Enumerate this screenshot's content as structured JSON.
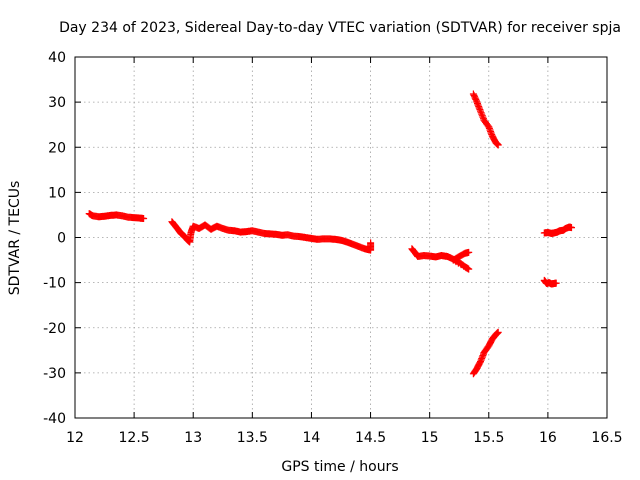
{
  "chart_data": {
    "type": "scatter",
    "title": "Day 234 of 2023, Sidereal Day-to-day VTEC variation (SDTVAR) for receiver spja",
    "xlabel": "GPS time / hours",
    "ylabel": "SDTVAR / TECUs",
    "xlim": [
      12,
      16.5
    ],
    "ylim": [
      -40,
      40
    ],
    "xticks": [
      12,
      12.5,
      13,
      13.5,
      14,
      14.5,
      15,
      15.5,
      16,
      16.5
    ],
    "yticks": [
      -40,
      -30,
      -20,
      -10,
      0,
      10,
      20,
      30,
      40
    ],
    "xtick_labels": [
      "12",
      "12.5",
      "13",
      "13.5",
      "14",
      "14.5",
      "15",
      "15.5",
      "16",
      "16.5"
    ],
    "ytick_labels": [
      "-40",
      "-30",
      "-20",
      "-10",
      "0",
      "10",
      "20",
      "30",
      "40"
    ],
    "grid": true,
    "marker": "+",
    "color": "#ff0000",
    "series": [
      {
        "name": "segment-1",
        "points": [
          [
            12.12,
            5.3
          ],
          [
            12.15,
            4.8
          ],
          [
            12.2,
            4.6
          ],
          [
            12.25,
            4.7
          ],
          [
            12.3,
            4.9
          ],
          [
            12.35,
            5.0
          ],
          [
            12.4,
            4.8
          ],
          [
            12.45,
            4.5
          ],
          [
            12.5,
            4.4
          ],
          [
            12.55,
            4.3
          ],
          [
            12.58,
            4.2
          ]
        ]
      },
      {
        "name": "segment-2",
        "points": [
          [
            12.82,
            3.5
          ],
          [
            12.85,
            2.5
          ],
          [
            12.88,
            1.5
          ],
          [
            12.9,
            0.8
          ],
          [
            12.93,
            0.2
          ],
          [
            12.95,
            -0.5
          ],
          [
            12.97,
            -1.0
          ],
          [
            12.98,
            1.0
          ],
          [
            13.0,
            2.5
          ],
          [
            13.05,
            2.0
          ],
          [
            13.1,
            2.8
          ],
          [
            13.15,
            1.8
          ],
          [
            13.2,
            2.5
          ],
          [
            13.25,
            2.0
          ],
          [
            13.3,
            1.6
          ],
          [
            13.35,
            1.5
          ],
          [
            13.4,
            1.2
          ],
          [
            13.45,
            1.3
          ],
          [
            13.5,
            1.5
          ],
          [
            13.55,
            1.2
          ],
          [
            13.6,
            0.9
          ],
          [
            13.65,
            0.8
          ],
          [
            13.7,
            0.7
          ],
          [
            13.75,
            0.5
          ],
          [
            13.8,
            0.6
          ],
          [
            13.85,
            0.3
          ],
          [
            13.9,
            0.2
          ],
          [
            13.95,
            0.0
          ],
          [
            14.0,
            -0.2
          ],
          [
            14.05,
            -0.4
          ],
          [
            14.1,
            -0.3
          ],
          [
            14.15,
            -0.3
          ],
          [
            14.2,
            -0.4
          ],
          [
            14.25,
            -0.6
          ],
          [
            14.3,
            -1.0
          ],
          [
            14.35,
            -1.5
          ],
          [
            14.4,
            -2.0
          ],
          [
            14.45,
            -2.5
          ],
          [
            14.5,
            -2.8
          ],
          [
            14.5,
            -1.2
          ]
        ]
      },
      {
        "name": "segment-3",
        "points": [
          [
            14.85,
            -2.5
          ],
          [
            14.88,
            -3.5
          ],
          [
            14.9,
            -4.2
          ],
          [
            14.95,
            -4.0
          ],
          [
            15.0,
            -4.1
          ],
          [
            15.05,
            -4.3
          ],
          [
            15.1,
            -4.0
          ],
          [
            15.15,
            -4.2
          ],
          [
            15.2,
            -4.8
          ],
          [
            15.25,
            -5.5
          ],
          [
            15.3,
            -6.5
          ],
          [
            15.33,
            -7.0
          ],
          [
            15.2,
            -5.0
          ],
          [
            15.25,
            -4.2
          ],
          [
            15.3,
            -3.5
          ],
          [
            15.33,
            -3.3
          ]
        ]
      },
      {
        "name": "segment-4",
        "points": [
          [
            15.37,
            31.8
          ],
          [
            15.4,
            30.0
          ],
          [
            15.43,
            28.0
          ],
          [
            15.46,
            26.0
          ],
          [
            15.5,
            24.5
          ],
          [
            15.53,
            22.5
          ],
          [
            15.56,
            21.0
          ],
          [
            15.58,
            20.5
          ]
        ]
      },
      {
        "name": "segment-5",
        "points": [
          [
            15.37,
            -30.2
          ],
          [
            15.4,
            -29.0
          ],
          [
            15.43,
            -27.5
          ],
          [
            15.46,
            -25.5
          ],
          [
            15.5,
            -24.0
          ],
          [
            15.53,
            -22.5
          ],
          [
            15.56,
            -21.5
          ],
          [
            15.58,
            -21.0
          ]
        ]
      },
      {
        "name": "segment-6",
        "points": [
          [
            15.97,
            -9.5
          ],
          [
            15.99,
            -10.2
          ],
          [
            16.01,
            -10.0
          ],
          [
            16.03,
            -10.3
          ],
          [
            16.05,
            -10.2
          ],
          [
            16.07,
            -10.1
          ]
        ]
      },
      {
        "name": "segment-7",
        "points": [
          [
            15.97,
            1.0
          ],
          [
            16.0,
            1.1
          ],
          [
            16.03,
            0.9
          ],
          [
            16.05,
            1.0
          ],
          [
            16.08,
            1.2
          ],
          [
            16.1,
            1.5
          ],
          [
            16.13,
            1.6
          ],
          [
            16.15,
            2.0
          ],
          [
            16.18,
            2.3
          ],
          [
            16.2,
            2.2
          ]
        ]
      }
    ]
  }
}
